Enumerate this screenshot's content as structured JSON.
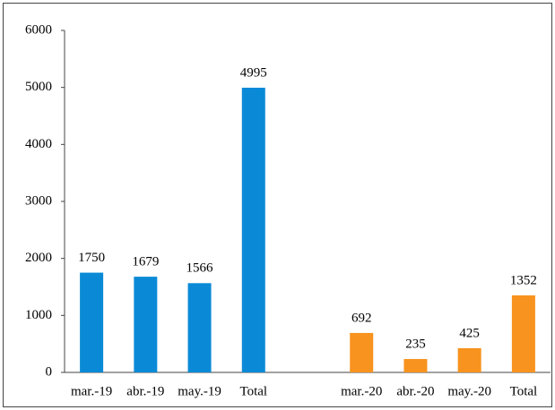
{
  "chart_data": {
    "type": "bar",
    "categories": [
      "mar.-19",
      "abr.-19",
      "may.-19",
      "Total",
      null,
      "mar.-20",
      "abr.-20",
      "may.-20",
      "Total"
    ],
    "values": [
      1750,
      1679,
      1566,
      4995,
      null,
      692,
      235,
      425,
      1352
    ],
    "colors": [
      "#0a8ad6",
      "#0a8ad6",
      "#0a8ad6",
      "#0a8ad6",
      null,
      "#f7931e",
      "#f7931e",
      "#f7931e",
      "#f7931e"
    ],
    "ylim": [
      0,
      6000
    ],
    "yticks": [
      0,
      1000,
      2000,
      3000,
      4000,
      5000,
      6000
    ],
    "grid": false
  }
}
